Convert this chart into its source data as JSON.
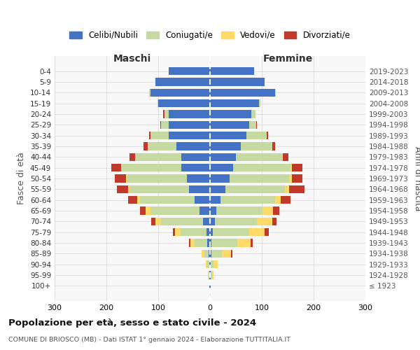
{
  "age_groups": [
    "0-4",
    "5-9",
    "10-14",
    "15-19",
    "20-24",
    "25-29",
    "30-34",
    "35-39",
    "40-44",
    "45-49",
    "50-54",
    "55-59",
    "60-64",
    "65-69",
    "70-74",
    "75-79",
    "80-84",
    "85-89",
    "90-94",
    "95-99",
    "100+"
  ],
  "birth_years": [
    "2019-2023",
    "2014-2018",
    "2009-2013",
    "2004-2008",
    "1999-2003",
    "1994-1998",
    "1989-1993",
    "1984-1988",
    "1979-1983",
    "1974-1978",
    "1969-1973",
    "1964-1968",
    "1959-1963",
    "1954-1958",
    "1949-1953",
    "1944-1948",
    "1939-1943",
    "1934-1938",
    "1929-1933",
    "1924-1928",
    "≤ 1923"
  ],
  "maschi": {
    "celibi": [
      80,
      105,
      115,
      100,
      80,
      80,
      80,
      65,
      55,
      55,
      45,
      40,
      30,
      20,
      14,
      7,
      5,
      3,
      2,
      2,
      1
    ],
    "coniugati": [
      0,
      0,
      2,
      2,
      8,
      14,
      35,
      55,
      90,
      115,
      115,
      115,
      105,
      95,
      80,
      50,
      25,
      8,
      4,
      1,
      0
    ],
    "vedovi": [
      0,
      0,
      0,
      0,
      0,
      0,
      0,
      0,
      0,
      1,
      2,
      3,
      5,
      10,
      12,
      10,
      8,
      5,
      2,
      1,
      0
    ],
    "divorziati": [
      0,
      0,
      0,
      0,
      2,
      2,
      3,
      8,
      10,
      20,
      22,
      22,
      18,
      10,
      8,
      5,
      2,
      0,
      0,
      0,
      0
    ]
  },
  "femmine": {
    "nubili": [
      85,
      105,
      125,
      95,
      80,
      75,
      70,
      60,
      50,
      45,
      38,
      30,
      20,
      12,
      10,
      5,
      3,
      3,
      2,
      2,
      1
    ],
    "coniugate": [
      0,
      0,
      2,
      2,
      8,
      14,
      40,
      60,
      90,
      110,
      115,
      115,
      105,
      90,
      80,
      70,
      50,
      20,
      5,
      2,
      0
    ],
    "vedove": [
      0,
      0,
      0,
      0,
      0,
      0,
      0,
      0,
      1,
      3,
      5,
      8,
      12,
      20,
      30,
      30,
      25,
      18,
      8,
      3,
      1
    ],
    "divorziate": [
      0,
      0,
      0,
      0,
      0,
      1,
      2,
      5,
      10,
      20,
      20,
      30,
      18,
      12,
      8,
      8,
      5,
      2,
      0,
      0,
      0
    ]
  },
  "colors": {
    "celibi_nubili": "#4472c4",
    "coniugati": "#c5d9a0",
    "vedovi": "#ffd966",
    "divorziati": "#c0392b"
  },
  "xlim": 300,
  "title": "Popolazione per età, sesso e stato civile - 2024",
  "subtitle": "COMUNE DI BRIOSCO (MB) - Dati ISTAT 1° gennaio 2024 - Elaborazione TUTTITALIA.IT",
  "legend_labels": [
    "Celibi/Nubili",
    "Coniugati/e",
    "Vedovi/e",
    "Divorziati/e"
  ],
  "xlabel_left": "Maschi",
  "xlabel_right": "Femmine",
  "ylabel_left": "Fasce di età",
  "ylabel_right": "Anni di nascita",
  "bg_color": "#ffffff",
  "plot_bg": "#f7f7f7",
  "grid_color": "#cccccc"
}
